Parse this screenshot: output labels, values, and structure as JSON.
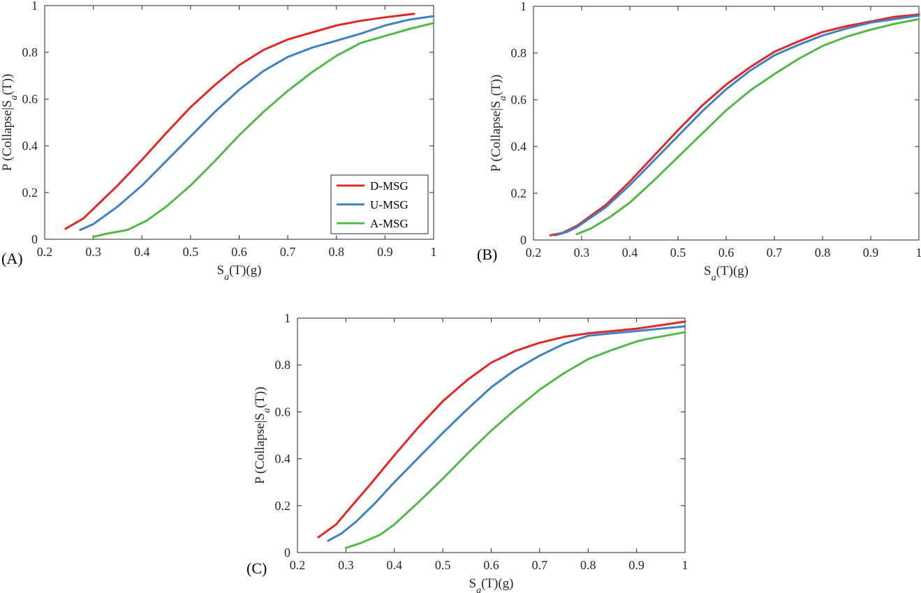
{
  "colors": {
    "D-MSG": "#e02827",
    "U-MSG": "#3f82c3",
    "A-MSG": "#52b848"
  },
  "chart_data": [
    {
      "type": "line",
      "panel_label": "(A)",
      "xlabel": "S_a(T)(g)",
      "ylabel": "P (Collapse|S_a(T))",
      "xlim": [
        0.2,
        1.0
      ],
      "ylim": [
        0,
        1
      ],
      "xticks": [
        "0.2",
        "0.3",
        "0.4",
        "0.5",
        "0.6",
        "0.7",
        "0.8",
        "0.9",
        "1"
      ],
      "yticks": [
        "0",
        "0.2",
        "0.4",
        "0.6",
        "0.8",
        "1"
      ],
      "legend": {
        "position": "lower-right",
        "entries": [
          "D-MSG",
          "U-MSG",
          "A-MSG"
        ]
      },
      "series": [
        {
          "name": "D-MSG",
          "x": [
            0.243,
            0.28,
            0.3,
            0.35,
            0.4,
            0.45,
            0.5,
            0.55,
            0.6,
            0.65,
            0.7,
            0.75,
            0.8,
            0.85,
            0.9,
            0.96
          ],
          "y": [
            0.045,
            0.09,
            0.13,
            0.23,
            0.34,
            0.455,
            0.565,
            0.66,
            0.745,
            0.81,
            0.855,
            0.885,
            0.915,
            0.935,
            0.95,
            0.965
          ]
        },
        {
          "name": "U-MSG",
          "x": [
            0.273,
            0.3,
            0.35,
            0.4,
            0.45,
            0.5,
            0.55,
            0.6,
            0.65,
            0.7,
            0.75,
            0.8,
            0.85,
            0.9,
            0.95,
            1.0
          ],
          "y": [
            0.04,
            0.065,
            0.14,
            0.23,
            0.335,
            0.44,
            0.545,
            0.64,
            0.72,
            0.78,
            0.82,
            0.85,
            0.88,
            0.915,
            0.94,
            0.955
          ]
        },
        {
          "name": "A-MSG",
          "x": [
            0.3,
            0.33,
            0.37,
            0.41,
            0.45,
            0.5,
            0.55,
            0.6,
            0.65,
            0.7,
            0.75,
            0.8,
            0.85,
            0.9,
            0.95,
            1.0
          ],
          "y": [
            0.01,
            0.025,
            0.04,
            0.08,
            0.14,
            0.23,
            0.335,
            0.445,
            0.545,
            0.635,
            0.715,
            0.785,
            0.84,
            0.87,
            0.9,
            0.925
          ]
        }
      ]
    },
    {
      "type": "line",
      "panel_label": "(B)",
      "xlabel": "S_a(T)(g)",
      "ylabel": "P (Collapse|S_a(T))",
      "xlim": [
        0.2,
        1.0
      ],
      "ylim": [
        0,
        1
      ],
      "xticks": [
        "0.2",
        "0.3",
        "0.4",
        "0.5",
        "0.6",
        "0.7",
        "0.8",
        "0.9",
        "1"
      ],
      "yticks": [
        "0",
        "0.2",
        "0.4",
        "0.6",
        "0.8",
        "1"
      ],
      "series": [
        {
          "name": "D-MSG",
          "x": [
            0.235,
            0.26,
            0.29,
            0.35,
            0.4,
            0.45,
            0.5,
            0.55,
            0.6,
            0.65,
            0.7,
            0.75,
            0.8,
            0.85,
            0.9,
            0.95,
            1.0
          ],
          "y": [
            0.02,
            0.03,
            0.06,
            0.15,
            0.25,
            0.36,
            0.47,
            0.575,
            0.665,
            0.74,
            0.805,
            0.85,
            0.89,
            0.915,
            0.935,
            0.955,
            0.965
          ]
        },
        {
          "name": "U-MSG",
          "x": [
            0.245,
            0.27,
            0.29,
            0.35,
            0.4,
            0.45,
            0.5,
            0.55,
            0.6,
            0.65,
            0.7,
            0.75,
            0.8,
            0.85,
            0.9,
            0.95,
            1.0
          ],
          "y": [
            0.02,
            0.035,
            0.055,
            0.14,
            0.235,
            0.34,
            0.445,
            0.55,
            0.645,
            0.725,
            0.79,
            0.835,
            0.875,
            0.905,
            0.93,
            0.945,
            0.96
          ]
        },
        {
          "name": "A-MSG",
          "x": [
            0.29,
            0.32,
            0.36,
            0.4,
            0.45,
            0.5,
            0.55,
            0.6,
            0.65,
            0.7,
            0.75,
            0.8,
            0.85,
            0.9,
            0.95,
            1.0
          ],
          "y": [
            0.025,
            0.05,
            0.1,
            0.16,
            0.255,
            0.355,
            0.455,
            0.555,
            0.64,
            0.71,
            0.775,
            0.83,
            0.87,
            0.9,
            0.925,
            0.945
          ]
        }
      ]
    },
    {
      "type": "line",
      "panel_label": "(C)",
      "xlabel": "S_a(T)(g)",
      "ylabel": "P (Collapse|S_a(T))",
      "xlim": [
        0.2,
        1.0
      ],
      "ylim": [
        0,
        1
      ],
      "xticks": [
        "0.2",
        "0.3",
        "0.4",
        "0.5",
        "0.6",
        "0.7",
        "0.8",
        "0.9",
        "1"
      ],
      "yticks": [
        "0",
        "0.2",
        "0.4",
        "0.6",
        "0.8",
        "1"
      ],
      "series": [
        {
          "name": "D-MSG",
          "x": [
            0.243,
            0.28,
            0.3,
            0.35,
            0.4,
            0.45,
            0.5,
            0.55,
            0.6,
            0.65,
            0.7,
            0.75,
            0.8,
            0.85,
            0.9,
            0.95,
            1.0
          ],
          "y": [
            0.065,
            0.12,
            0.17,
            0.29,
            0.415,
            0.535,
            0.645,
            0.735,
            0.81,
            0.86,
            0.895,
            0.92,
            0.935,
            0.945,
            0.955,
            0.97,
            0.985
          ]
        },
        {
          "name": "U-MSG",
          "x": [
            0.263,
            0.29,
            0.32,
            0.36,
            0.4,
            0.45,
            0.5,
            0.55,
            0.6,
            0.65,
            0.7,
            0.75,
            0.8,
            0.85,
            0.9,
            0.95,
            1.0
          ],
          "y": [
            0.05,
            0.08,
            0.13,
            0.21,
            0.3,
            0.405,
            0.51,
            0.61,
            0.705,
            0.78,
            0.84,
            0.89,
            0.925,
            0.935,
            0.945,
            0.955,
            0.965
          ]
        },
        {
          "name": "A-MSG",
          "x": [
            0.3,
            0.33,
            0.37,
            0.4,
            0.45,
            0.5,
            0.55,
            0.6,
            0.65,
            0.7,
            0.75,
            0.8,
            0.85,
            0.9,
            0.92,
            0.96,
            1.0
          ],
          "y": [
            0.02,
            0.04,
            0.075,
            0.12,
            0.215,
            0.315,
            0.42,
            0.52,
            0.61,
            0.695,
            0.765,
            0.825,
            0.865,
            0.9,
            0.91,
            0.925,
            0.94
          ]
        }
      ]
    }
  ]
}
